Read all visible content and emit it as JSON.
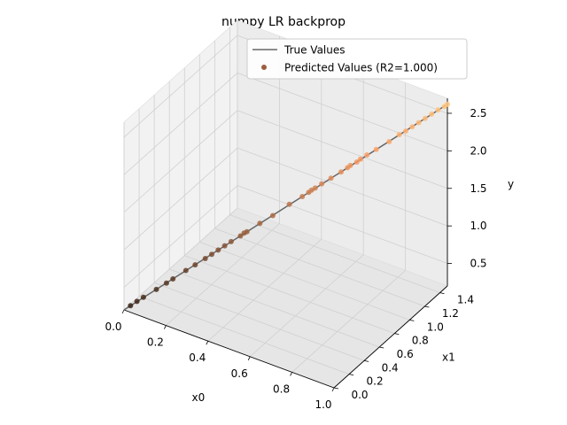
{
  "chart_data": {
    "type": "scatter3d",
    "title": "numpy LR backprop",
    "xlabel": "x0",
    "ylabel": "x1",
    "zlabel": "y",
    "xlim": [
      0.0,
      1.0
    ],
    "ylim": [
      0.0,
      1.5
    ],
    "zlim": [
      0.2,
      2.7
    ],
    "xticks": [
      "0.0",
      "0.2",
      "0.4",
      "0.6",
      "0.8",
      "1.0"
    ],
    "yticks": [
      "0.0",
      "0.2",
      "0.4",
      "0.6",
      "0.8",
      "1.0",
      "1.2",
      "1.4"
    ],
    "zticks": [
      "0.5",
      "1.0",
      "1.5",
      "2.0",
      "2.5"
    ],
    "grid": true,
    "legend": {
      "placement": "top-right",
      "entries": [
        "True Values",
        "Predicted Values (R2=1.000)"
      ]
    },
    "colormap": "copper",
    "series": [
      {
        "name": "True Values",
        "style": "line",
        "color": "#666666",
        "points": [
          [
            0.0,
            0.0,
            0.2
          ],
          [
            1.0,
            1.5,
            2.62
          ]
        ]
      },
      {
        "name": "Predicted Values (R2=1.000)",
        "style": "scatter",
        "x": [
          0.02,
          0.04,
          0.06,
          0.1,
          0.13,
          0.15,
          0.19,
          0.22,
          0.25,
          0.27,
          0.29,
          0.31,
          0.33,
          0.36,
          0.37,
          0.38,
          0.42,
          0.46,
          0.51,
          0.55,
          0.57,
          0.58,
          0.59,
          0.61,
          0.64,
          0.67,
          0.69,
          0.7,
          0.72,
          0.73,
          0.75,
          0.78,
          0.82,
          0.85,
          0.87,
          0.89,
          0.91,
          0.93,
          0.95,
          0.97,
          0.99,
          1.0
        ],
        "y": [
          0.03,
          0.06,
          0.09,
          0.15,
          0.2,
          0.23,
          0.29,
          0.33,
          0.38,
          0.41,
          0.44,
          0.47,
          0.5,
          0.54,
          0.56,
          0.57,
          0.63,
          0.69,
          0.77,
          0.83,
          0.86,
          0.87,
          0.89,
          0.92,
          0.96,
          1.01,
          1.04,
          1.05,
          1.08,
          1.1,
          1.13,
          1.17,
          1.23,
          1.28,
          1.31,
          1.34,
          1.37,
          1.4,
          1.43,
          1.46,
          1.49,
          1.5
        ],
        "z": [
          0.25,
          0.3,
          0.35,
          0.44,
          0.51,
          0.56,
          0.66,
          0.73,
          0.8,
          0.85,
          0.9,
          0.95,
          1.0,
          1.07,
          1.1,
          1.12,
          1.22,
          1.31,
          1.44,
          1.53,
          1.58,
          1.61,
          1.63,
          1.68,
          1.75,
          1.82,
          1.87,
          1.9,
          1.94,
          1.97,
          2.02,
          2.09,
          2.18,
          2.26,
          2.3,
          2.35,
          2.4,
          2.45,
          2.5,
          2.55,
          2.59,
          2.62
        ]
      }
    ]
  }
}
